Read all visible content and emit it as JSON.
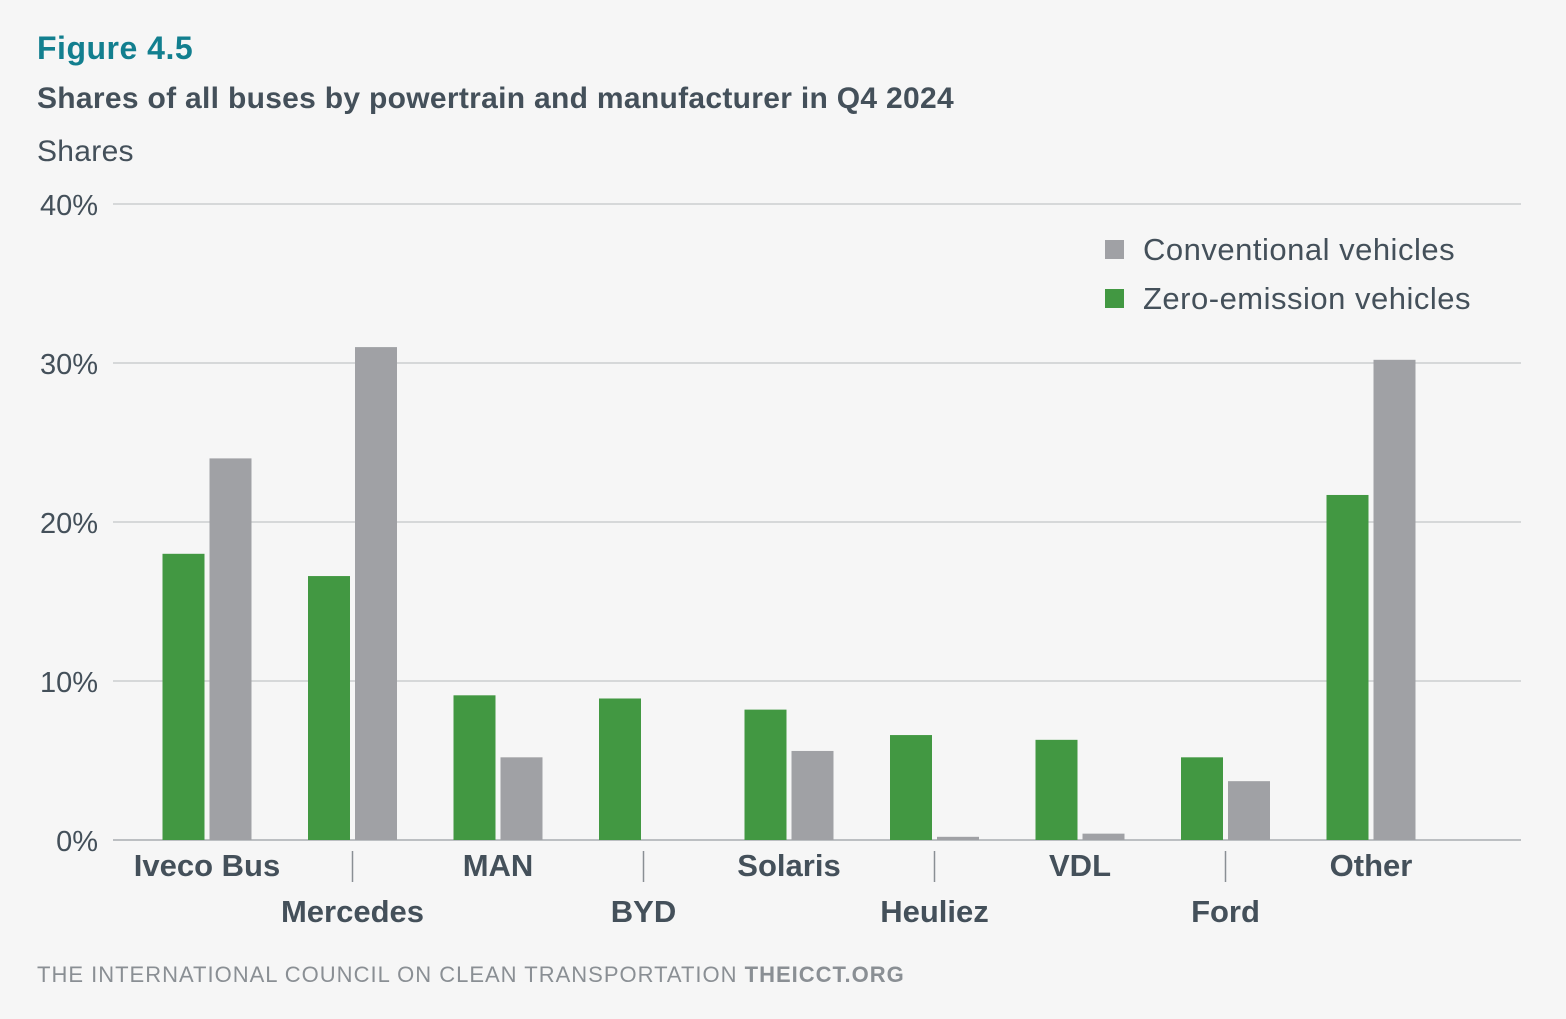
{
  "header": {
    "figure_label": "Figure 4.5",
    "title": "Shares of all buses by powertrain and manufacturer in Q4 2024",
    "ylabel": "Shares"
  },
  "footer": {
    "org": "THE INTERNATIONAL COUNCIL ON CLEAN TRANSPORTATION",
    "site": "THEICCT.ORG"
  },
  "chart_data": {
    "type": "bar",
    "categories": [
      "Iveco Bus",
      "Mercedes",
      "MAN",
      "BYD",
      "Solaris",
      "Heuliez",
      "VDL",
      "Ford",
      "Other"
    ],
    "series": [
      {
        "name": "Zero-emission vehicles",
        "color": "#429842",
        "values": [
          18.0,
          16.6,
          9.1,
          8.9,
          8.2,
          6.6,
          6.3,
          5.2,
          21.7
        ]
      },
      {
        "name": "Conventional vehicles",
        "color": "#a0a1a5",
        "values": [
          24.0,
          31.0,
          5.2,
          0.0,
          5.6,
          0.2,
          0.4,
          3.7,
          30.2
        ]
      }
    ],
    "legend_order": [
      "Conventional vehicles",
      "Zero-emission vehicles"
    ],
    "ylim": [
      0,
      40
    ],
    "yticks": [
      "0%",
      "10%",
      "20%",
      "30%",
      "40%"
    ],
    "ytick_values": [
      0,
      10,
      20,
      30,
      40
    ],
    "grid": true,
    "legend_position": "top-right"
  }
}
